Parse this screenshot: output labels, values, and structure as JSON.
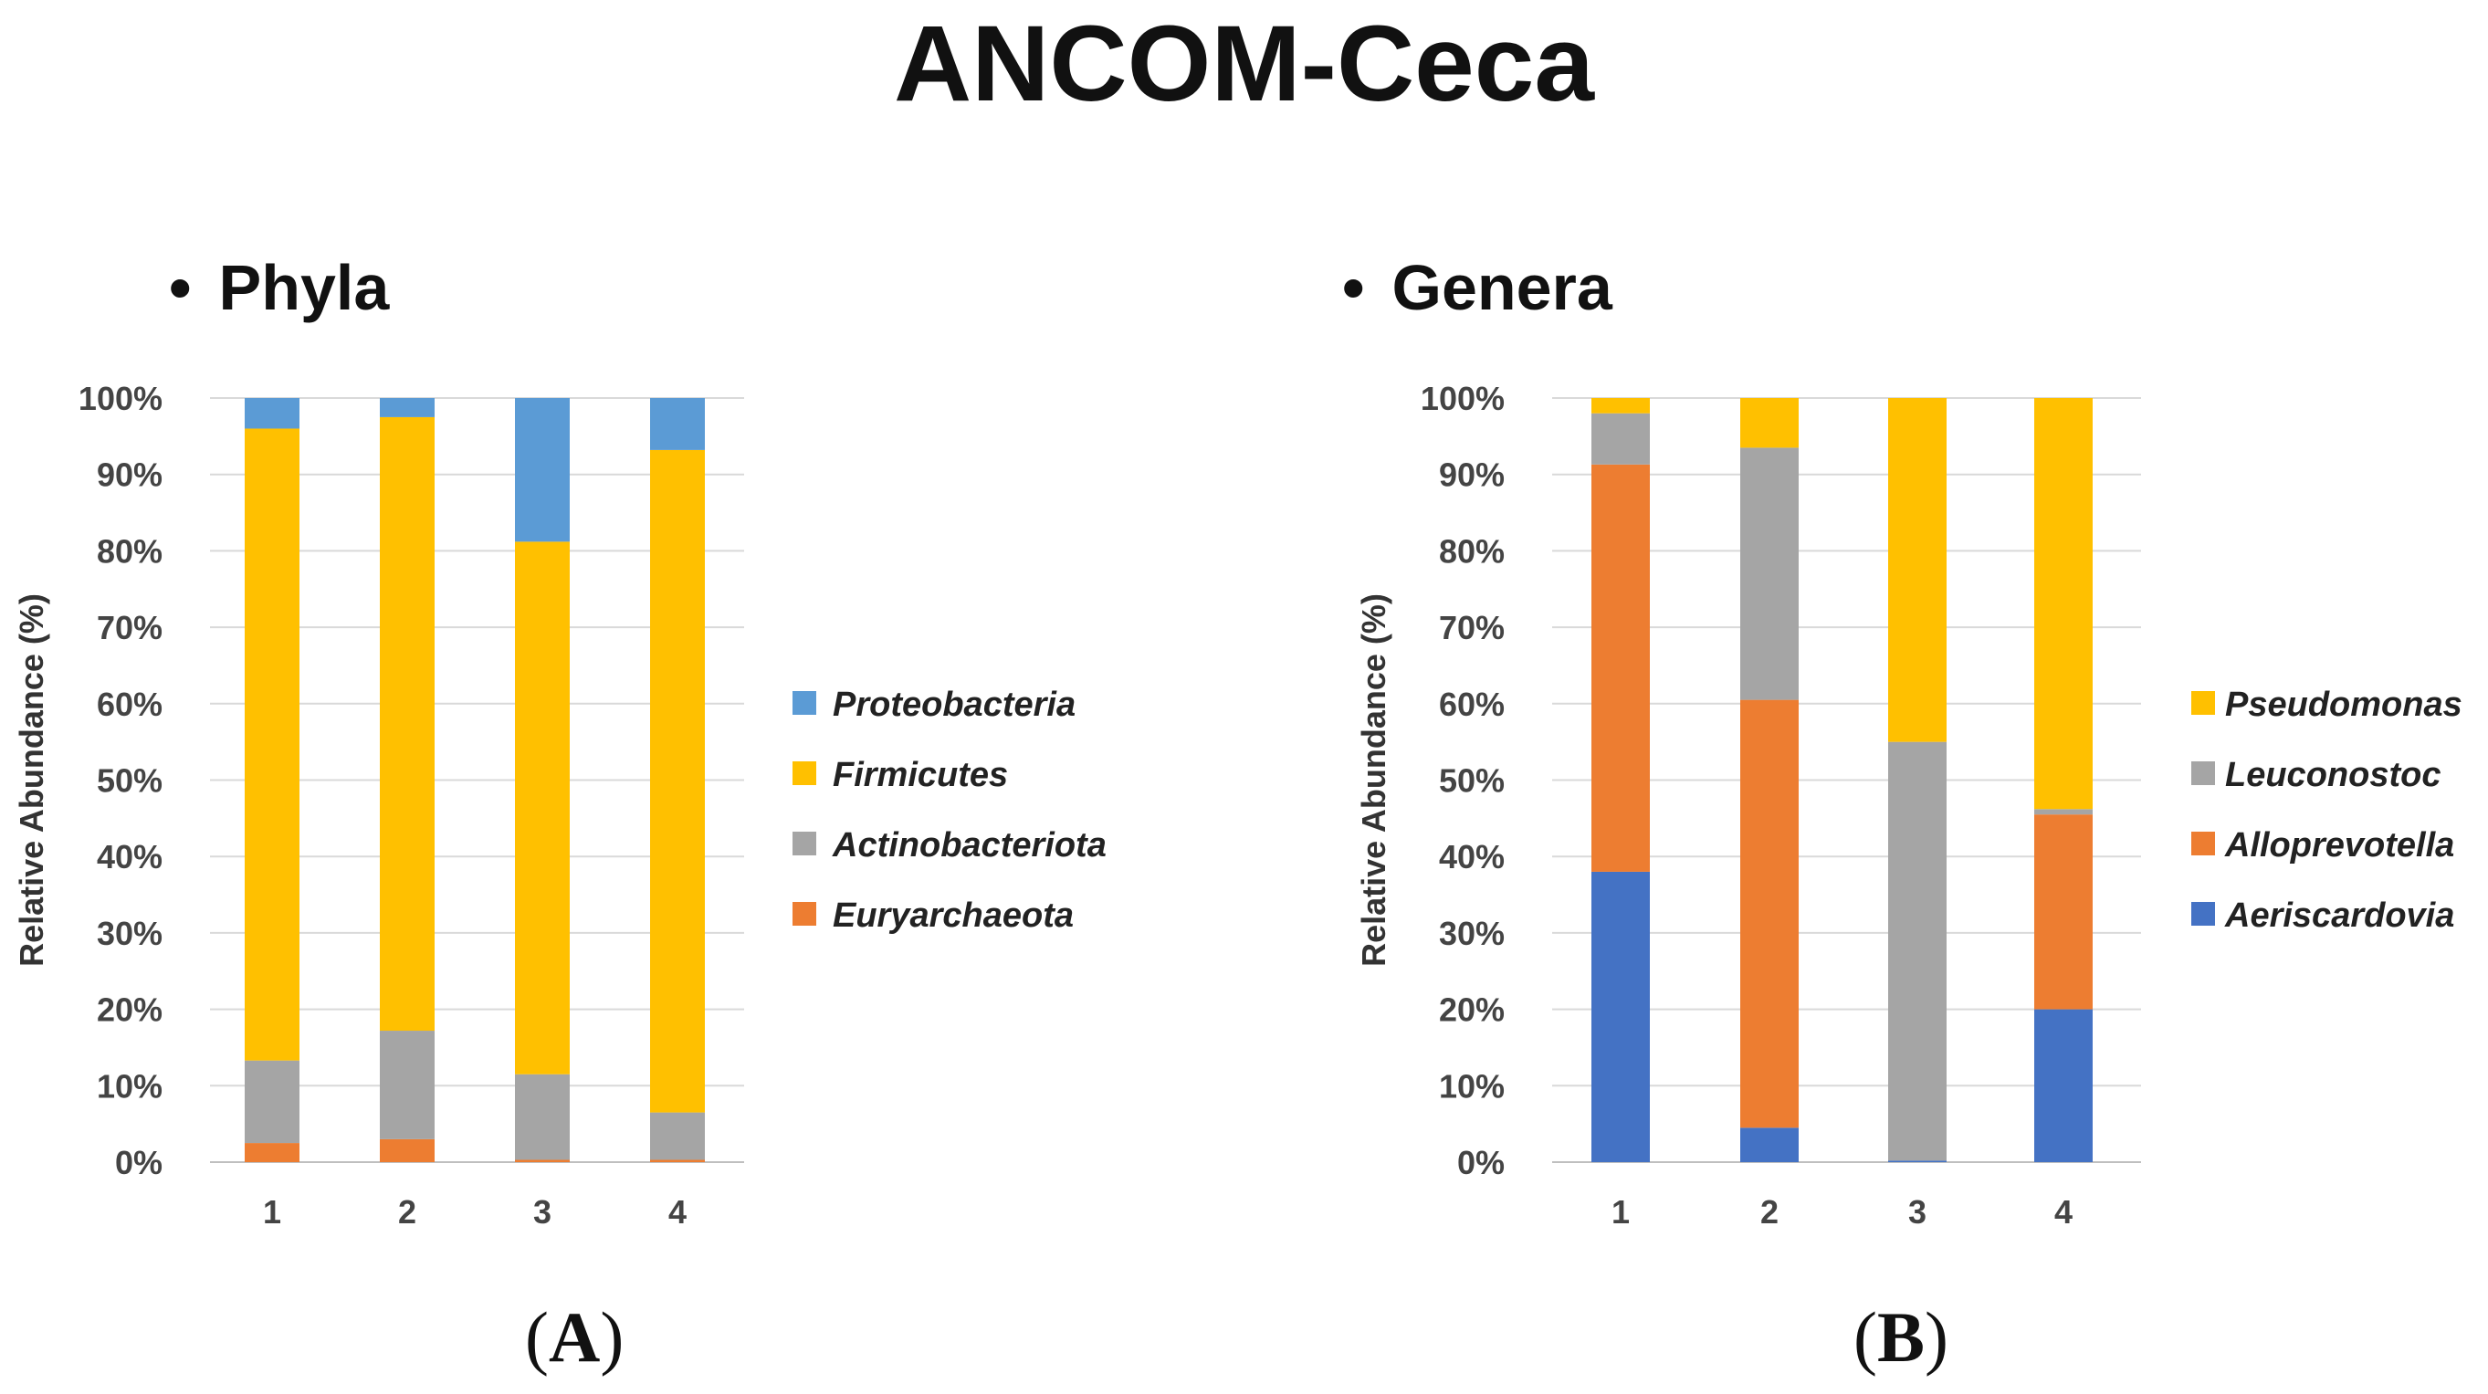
{
  "title": "ANCOM-Ceca",
  "panels": [
    {
      "heading": "Phyla",
      "letter": "A"
    },
    {
      "heading": "Genera",
      "letter": "B"
    }
  ],
  "chart_data": [
    {
      "type": "bar",
      "stacked": true,
      "title": "Phyla",
      "xlabel": "",
      "ylabel": "Relative Abundance (%)",
      "ylim": [
        0,
        100
      ],
      "yticks": [
        "0%",
        "10%",
        "20%",
        "30%",
        "40%",
        "50%",
        "60%",
        "70%",
        "80%",
        "90%",
        "100%"
      ],
      "categories": [
        "1",
        "2",
        "3",
        "4"
      ],
      "series": [
        {
          "name": "Euryarchaeota",
          "color": "#ED7D31",
          "values": [
            2.5,
            3,
            0.3,
            0.3
          ]
        },
        {
          "name": "Actinobacteriota",
          "color": "#A5A5A5",
          "values": [
            10.8,
            14.2,
            11.2,
            6.2
          ]
        },
        {
          "name": "Firmicutes",
          "color": "#FFC000",
          "values": [
            82.7,
            80.3,
            69.7,
            86.7
          ]
        },
        {
          "name": "Proteobacteria",
          "color": "#5B9BD5",
          "values": [
            4,
            2.5,
            18.8,
            6.8
          ]
        }
      ],
      "legend": "right",
      "legend_order": [
        "Proteobacteria",
        "Firmicutes",
        "Actinobacteriota",
        "Euryarchaeota"
      ]
    },
    {
      "type": "bar",
      "stacked": true,
      "title": "Genera",
      "xlabel": "",
      "ylabel": "Relative Abundance (%)",
      "ylim": [
        0,
        100
      ],
      "yticks": [
        "0%",
        "10%",
        "20%",
        "30%",
        "40%",
        "50%",
        "60%",
        "70%",
        "80%",
        "90%",
        "100%"
      ],
      "categories": [
        "1",
        "2",
        "3",
        "4"
      ],
      "series": [
        {
          "name": "Aeriscardovia",
          "color": "#4472C4",
          "values": [
            38,
            4.5,
            0.2,
            20
          ]
        },
        {
          "name": "Alloprevotella",
          "color": "#ED7D31",
          "values": [
            53.3,
            56,
            0,
            25.5
          ]
        },
        {
          "name": "Leuconostoc",
          "color": "#A5A5A5",
          "values": [
            6.7,
            33,
            54.8,
            0.7
          ]
        },
        {
          "name": "Pseudomonas",
          "color": "#FFC000",
          "values": [
            2,
            6.5,
            45,
            53.8
          ]
        }
      ],
      "legend": "right",
      "legend_order": [
        "Pseudomonas",
        "Leuconostoc",
        "Alloprevotella",
        "Aeriscardovia"
      ]
    }
  ]
}
